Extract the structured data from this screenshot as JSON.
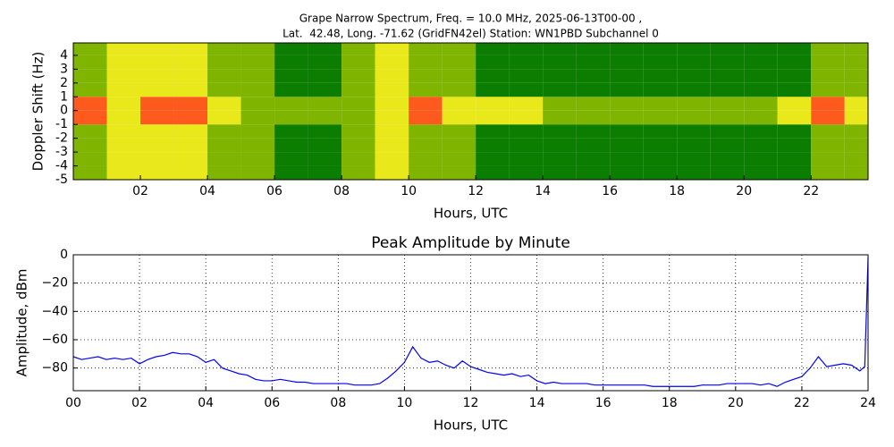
{
  "chart_data": [
    {
      "type": "heatmap",
      "title": "Grape Narrow Spectrum, Freq. = 10.0 MHz, 2025-06-13T00-00 ,",
      "subtitle": "Lat.  42.48, Long. -71.62 (GridFN42el) Station: WN1PBD Subchannel 0",
      "x_label": "Hours, UTC",
      "y_label": "Doppler Shift (Hz)",
      "x": [
        0,
        1,
        2,
        3,
        4,
        5,
        6,
        7,
        8,
        9,
        10,
        11,
        12,
        13,
        14,
        15,
        16,
        17,
        18,
        19,
        20,
        21,
        22,
        23,
        23.7
      ],
      "y": [
        -5,
        -4,
        -3,
        -2,
        -1,
        0,
        1,
        2,
        3,
        4,
        4.9
      ],
      "z": [
        [
          1,
          2,
          2,
          2,
          1,
          1,
          0,
          0,
          1,
          2,
          1,
          1,
          0,
          0,
          0,
          0,
          0,
          0,
          0,
          0,
          0,
          0,
          1,
          1
        ],
        [
          1,
          2,
          2,
          2,
          1,
          1,
          0,
          0,
          1,
          2,
          1,
          1,
          0,
          0,
          0,
          0,
          0,
          0,
          0,
          0,
          0,
          0,
          1,
          1
        ],
        [
          1,
          2,
          2,
          2,
          1,
          1,
          0,
          0,
          1,
          2,
          1,
          1,
          0,
          0,
          0,
          0,
          0,
          0,
          0,
          0,
          0,
          0,
          1,
          1
        ],
        [
          1,
          2,
          2,
          2,
          1,
          1,
          0,
          0,
          1,
          2,
          1,
          1,
          0,
          0,
          0,
          0,
          0,
          0,
          0,
          0,
          0,
          0,
          1,
          1
        ],
        [
          3,
          2,
          3,
          3,
          2,
          1,
          1,
          1,
          1,
          2,
          3,
          2,
          2,
          2,
          1,
          1,
          1,
          1,
          1,
          1,
          1,
          2,
          3,
          2
        ],
        [
          3,
          2,
          3,
          3,
          2,
          1,
          1,
          1,
          1,
          2,
          3,
          2,
          2,
          2,
          1,
          1,
          1,
          1,
          1,
          1,
          1,
          2,
          3,
          2
        ],
        [
          1,
          2,
          2,
          2,
          1,
          1,
          0,
          0,
          1,
          2,
          1,
          1,
          0,
          0,
          0,
          0,
          0,
          0,
          0,
          0,
          0,
          0,
          1,
          1
        ],
        [
          1,
          2,
          2,
          2,
          1,
          1,
          0,
          0,
          1,
          2,
          1,
          1,
          0,
          0,
          0,
          0,
          0,
          0,
          0,
          0,
          0,
          0,
          1,
          1
        ],
        [
          1,
          2,
          2,
          2,
          1,
          1,
          0,
          0,
          1,
          2,
          1,
          1,
          0,
          0,
          0,
          0,
          0,
          0,
          0,
          0,
          0,
          0,
          1,
          1
        ],
        [
          1,
          2,
          2,
          2,
          1,
          1,
          0,
          0,
          1,
          2,
          1,
          1,
          0,
          0,
          0,
          0,
          0,
          0,
          0,
          0,
          0,
          0,
          1,
          1
        ]
      ],
      "colors": [
        "#0b7d00",
        "#7fb400",
        "#e8e81a",
        "#ff5a1e"
      ],
      "xlim": [
        0,
        23.7
      ],
      "ylim": [
        -5,
        4.9
      ],
      "xticks": [
        {
          "value": 2,
          "label": "02"
        },
        {
          "value": 4,
          "label": "04"
        },
        {
          "value": 6,
          "label": "06"
        },
        {
          "value": 8,
          "label": "08"
        },
        10,
        12,
        14,
        16,
        18,
        20,
        22
      ],
      "yticks": [
        -5,
        -4,
        -3,
        -2,
        -1,
        0,
        1,
        2,
        3,
        4
      ],
      "grid": false
    },
    {
      "type": "line",
      "title": "Peak Amplitude by Minute",
      "x_label": "Hours, UTC",
      "y_label": "Amplitude, dBm",
      "x": [
        0,
        0.25,
        0.5,
        0.75,
        1,
        1.25,
        1.5,
        1.75,
        2,
        2.25,
        2.5,
        2.75,
        3,
        3.25,
        3.5,
        3.75,
        4,
        4.25,
        4.5,
        4.75,
        5,
        5.25,
        5.5,
        5.75,
        6,
        6.25,
        6.5,
        6.75,
        7,
        7.25,
        7.5,
        7.75,
        8,
        8.25,
        8.5,
        8.75,
        9,
        9.25,
        9.5,
        9.75,
        10,
        10.25,
        10.5,
        10.75,
        11,
        11.25,
        11.5,
        11.75,
        12,
        12.25,
        12.5,
        12.75,
        13,
        13.25,
        13.5,
        13.75,
        14,
        14.25,
        14.5,
        14.75,
        15,
        15.25,
        15.5,
        15.75,
        16,
        16.25,
        16.5,
        16.75,
        17,
        17.25,
        17.5,
        17.75,
        18,
        18.25,
        18.5,
        18.75,
        19,
        19.25,
        19.5,
        19.75,
        20,
        20.25,
        20.5,
        20.75,
        21,
        21.25,
        21.5,
        21.75,
        22,
        22.25,
        22.5,
        22.75,
        23,
        23.25,
        23.5,
        23.75,
        23.9,
        24
      ],
      "series": [
        {
          "name": "Peak Amplitude",
          "color": "#0000ff",
          "values": [
            -72,
            -74,
            -73,
            -72,
            -74,
            -73,
            -74,
            -73,
            -77,
            -74,
            -72,
            -71,
            -69,
            -70,
            -70,
            -72,
            -76,
            -74,
            -80,
            -82,
            -84,
            -85,
            -88,
            -89,
            -89,
            -88,
            -89,
            -90,
            -90,
            -91,
            -91,
            -91,
            -91,
            -91,
            -92,
            -92,
            -92,
            -91,
            -87,
            -82,
            -76,
            -65,
            -73,
            -76,
            -75,
            -78,
            -80,
            -75,
            -79,
            -81,
            -83,
            -84,
            -85,
            -84,
            -86,
            -85,
            -89,
            -91,
            -90,
            -91,
            -91,
            -91,
            -91,
            -92,
            -92,
            -92,
            -92,
            -92,
            -92,
            -92,
            -93,
            -93,
            -93,
            -93,
            -93,
            -93,
            -92,
            -92,
            -92,
            -91,
            -91,
            -91,
            -91,
            -92,
            -91,
            -93,
            -90,
            -88,
            -86,
            -80,
            -72,
            -79,
            -78,
            -77,
            -78,
            -82,
            -79,
            -2
          ]
        }
      ],
      "xlim": [
        0,
        24
      ],
      "ylim": [
        -96,
        0
      ],
      "xticks": [
        {
          "value": 0,
          "label": "00"
        },
        {
          "value": 2,
          "label": "02"
        },
        {
          "value": 4,
          "label": "04"
        },
        {
          "value": 6,
          "label": "06"
        },
        {
          "value": 8,
          "label": "08"
        },
        10,
        12,
        14,
        16,
        18,
        20,
        22,
        24
      ],
      "yticks": [
        0,
        {
          "value": -20,
          "label": "−20"
        },
        {
          "value": -40,
          "label": "−40"
        },
        {
          "value": -60,
          "label": "−60"
        },
        {
          "value": -80,
          "label": "−80"
        }
      ],
      "grid": true
    }
  ]
}
